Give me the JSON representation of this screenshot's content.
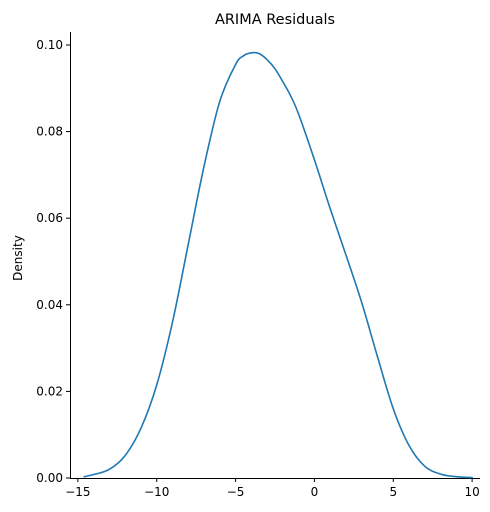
{
  "chart_data": {
    "type": "line",
    "title": "ARIMA Residuals",
    "xlabel": "",
    "ylabel": "Density",
    "xlim": [
      -15.5,
      10.5
    ],
    "ylim": [
      0,
      0.103
    ],
    "x_ticks": [
      -15,
      -10,
      -5,
      0,
      5,
      10
    ],
    "x_tick_labels": [
      "−15",
      "−10",
      "−5",
      "0",
      "5",
      "10"
    ],
    "y_ticks": [
      0.0,
      0.02,
      0.04,
      0.06,
      0.08,
      0.1
    ],
    "y_tick_labels": [
      "0.00",
      "0.02",
      "0.04",
      "0.06",
      "0.08",
      "0.10"
    ],
    "grid": false,
    "line_color": "#1f77b4",
    "series": [
      {
        "x": [
          -14.6,
          -14.0,
          -13.0,
          -12.0,
          -11.0,
          -10.0,
          -9.0,
          -8.0,
          -7.0,
          -6.0,
          -5.0,
          -4.5,
          -4.0,
          -3.5,
          -3.0,
          -2.5,
          -2.0,
          -1.5,
          -1.0,
          0.0,
          1.0,
          2.0,
          3.0,
          4.0,
          5.0,
          6.0,
          7.0,
          8.0,
          9.0,
          10.0
        ],
        "y": [
          0.0003,
          0.0008,
          0.002,
          0.0052,
          0.0115,
          0.0215,
          0.036,
          0.054,
          0.072,
          0.087,
          0.0955,
          0.0975,
          0.0982,
          0.098,
          0.0966,
          0.0945,
          0.0915,
          0.0882,
          0.084,
          0.0735,
          0.0622,
          0.0515,
          0.0405,
          0.028,
          0.016,
          0.0075,
          0.0027,
          0.0009,
          0.0003,
          0.0001
        ]
      }
    ]
  }
}
